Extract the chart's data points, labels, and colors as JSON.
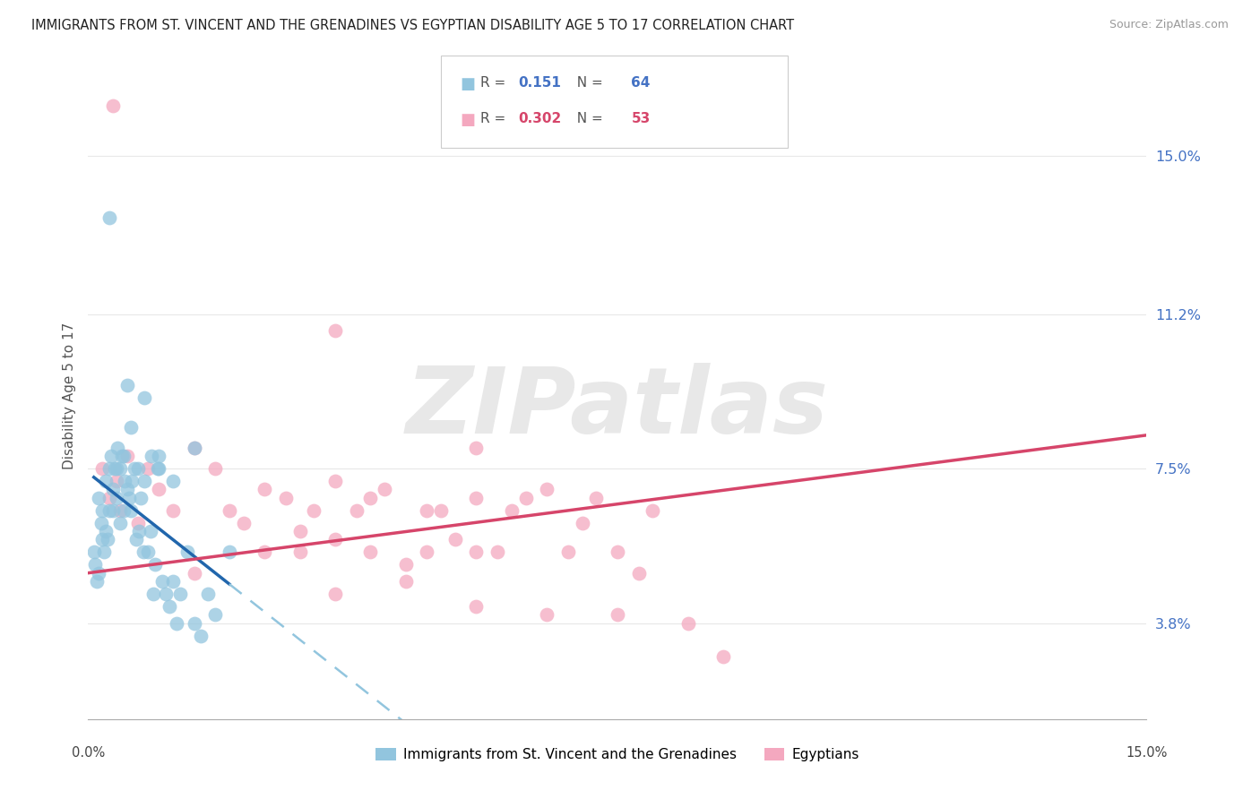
{
  "title": "IMMIGRANTS FROM ST. VINCENT AND THE GRENADINES VS EGYPTIAN DISABILITY AGE 5 TO 17 CORRELATION CHART",
  "source": "Source: ZipAtlas.com",
  "ylabel": "Disability Age 5 to 17",
  "ytick_labels": [
    "3.8%",
    "7.5%",
    "11.2%",
    "15.0%"
  ],
  "ytick_values": [
    3.8,
    7.5,
    11.2,
    15.0
  ],
  "xmin": 0.0,
  "xmax": 15.0,
  "ymin": 1.5,
  "ymax": 17.0,
  "legend1_R": "0.151",
  "legend1_N": "64",
  "legend2_R": "0.302",
  "legend2_N": "53",
  "legend_label1": "Immigrants from St. Vincent and the Grenadines",
  "legend_label2": "Egyptians",
  "blue_color": "#92c5de",
  "pink_color": "#f4a8bf",
  "blue_line_color": "#2166ac",
  "blue_dash_color": "#92c5de",
  "pink_line_color": "#d6456a",
  "watermark_text": "ZIPatlas",
  "grid_color": "#e8e8e8",
  "bg_color": "#ffffff",
  "blue_x": [
    0.08,
    0.1,
    0.12,
    0.15,
    0.15,
    0.18,
    0.2,
    0.2,
    0.22,
    0.25,
    0.25,
    0.28,
    0.3,
    0.3,
    0.32,
    0.35,
    0.35,
    0.38,
    0.4,
    0.4,
    0.42,
    0.45,
    0.45,
    0.48,
    0.5,
    0.5,
    0.52,
    0.55,
    0.58,
    0.6,
    0.6,
    0.62,
    0.65,
    0.68,
    0.7,
    0.72,
    0.75,
    0.78,
    0.8,
    0.85,
    0.88,
    0.9,
    0.92,
    0.95,
    0.98,
    1.0,
    1.05,
    1.1,
    1.15,
    1.2,
    1.25,
    1.3,
    1.4,
    1.5,
    1.6,
    1.7,
    1.8,
    0.3,
    0.55,
    0.8,
    1.0,
    1.2,
    1.5,
    2.0
  ],
  "blue_y": [
    5.5,
    5.2,
    4.8,
    6.8,
    5.0,
    6.2,
    5.8,
    6.5,
    5.5,
    7.2,
    6.0,
    5.8,
    7.5,
    6.5,
    7.8,
    7.0,
    6.5,
    7.5,
    7.5,
    6.8,
    8.0,
    7.5,
    6.2,
    7.8,
    7.8,
    6.5,
    7.2,
    7.0,
    6.8,
    8.5,
    6.5,
    7.2,
    7.5,
    5.8,
    7.5,
    6.0,
    6.8,
    5.5,
    7.2,
    5.5,
    6.0,
    7.8,
    4.5,
    5.2,
    7.5,
    7.5,
    4.8,
    4.5,
    4.2,
    4.8,
    3.8,
    4.5,
    5.5,
    3.8,
    3.5,
    4.5,
    4.0,
    13.5,
    9.5,
    9.2,
    7.8,
    7.2,
    8.0,
    5.5
  ],
  "pink_x": [
    0.2,
    0.3,
    0.35,
    0.4,
    0.45,
    0.55,
    0.7,
    0.85,
    1.0,
    1.2,
    1.5,
    1.8,
    2.0,
    2.2,
    2.5,
    2.8,
    3.0,
    3.0,
    3.2,
    3.5,
    3.5,
    3.8,
    4.0,
    4.0,
    4.2,
    4.5,
    4.8,
    4.8,
    5.0,
    5.2,
    5.5,
    5.5,
    5.8,
    6.0,
    6.2,
    6.5,
    6.8,
    7.0,
    7.2,
    7.5,
    7.8,
    8.0,
    8.5,
    9.0,
    1.5,
    2.5,
    3.5,
    4.5,
    5.5,
    6.5,
    7.5,
    3.5,
    5.5
  ],
  "pink_y": [
    7.5,
    6.8,
    16.2,
    7.2,
    6.5,
    7.8,
    6.2,
    7.5,
    7.0,
    6.5,
    8.0,
    7.5,
    6.5,
    6.2,
    7.0,
    6.8,
    5.5,
    6.0,
    6.5,
    5.8,
    7.2,
    6.5,
    5.5,
    6.8,
    7.0,
    5.2,
    6.5,
    5.5,
    6.5,
    5.8,
    5.5,
    6.8,
    5.5,
    6.5,
    6.8,
    7.0,
    5.5,
    6.2,
    6.8,
    5.5,
    5.0,
    6.5,
    3.8,
    3.0,
    5.0,
    5.5,
    4.5,
    4.8,
    4.2,
    4.0,
    4.0,
    10.8,
    8.0
  ],
  "blue_line_start_x": 0.08,
  "blue_line_end_solid_x": 2.0,
  "pink_line_intercept": 5.0,
  "pink_line_slope": 0.22
}
